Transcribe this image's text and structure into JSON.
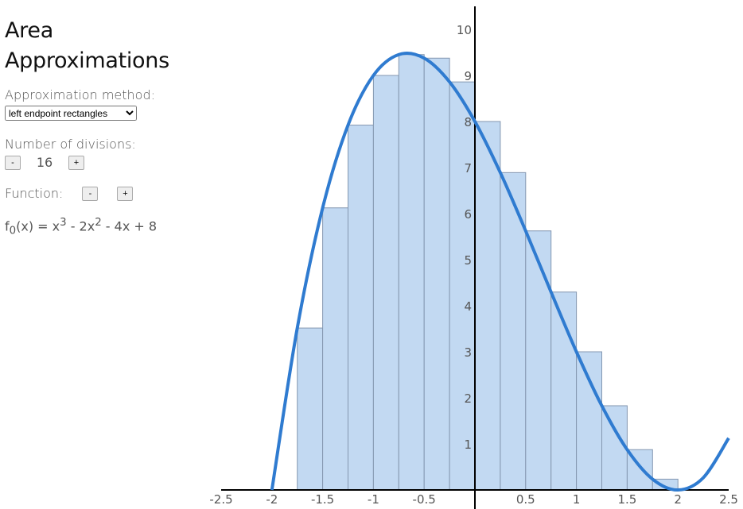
{
  "header": {
    "title": "Area Approximations"
  },
  "controls": {
    "method_label": "Approximation method:",
    "method_value": "left endpoint rectangles",
    "divisions_label": "Number of divisions:",
    "divisions_minus": "-",
    "divisions_value": 16,
    "divisions_plus": "+",
    "function_label": "Function:",
    "function_minus": "-",
    "function_plus": "+"
  },
  "formula": {
    "parts": [
      "f",
      "0",
      "(x) = x",
      "3",
      " - 2x",
      "2",
      " - 4x + 8"
    ]
  },
  "chart_data": {
    "type": "histogram",
    "bins": [
      -2,
      -1.75,
      -1.5,
      -1.25,
      -1,
      -0.75,
      -0.5,
      -0.25,
      0,
      0.25,
      0.5,
      0.75,
      1,
      1.25,
      1.5,
      1.75,
      2
    ],
    "values": [
      0,
      3.515625,
      6.125,
      7.921875,
      9,
      9.453125,
      9.375,
      8.859375,
      8,
      6.890625,
      5.625,
      4.296875,
      3,
      1.828125,
      0.875,
      0.234375
    ],
    "color": "#c2d9f2",
    "line": {
      "x": [
        -2,
        -1.75,
        -1.5,
        -1.25,
        -1,
        -0.75,
        -0.5,
        -0.25,
        0,
        0.25,
        0.5,
        0.75,
        1,
        1.25,
        1.5,
        1.75,
        2,
        2.25,
        2.5
      ],
      "values": [
        0,
        3.515625,
        6.125,
        7.921875,
        9,
        9.453125,
        9.375,
        8.859375,
        8,
        6.890625,
        5.625,
        4.296875,
        3,
        1.828125,
        0.875,
        0.234375,
        0,
        0.265625,
        1.125
      ],
      "color": "#2f7bd0"
    },
    "xlim": [
      -2.5,
      2.5
    ],
    "xticks": [
      -2.5,
      -2,
      -1.5,
      -1,
      -0.5,
      0.5,
      1,
      1.5,
      2,
      2.5
    ],
    "ylim": [
      0,
      10.5
    ],
    "yticks": [
      1,
      2,
      3,
      4,
      5,
      6,
      7,
      8,
      9,
      10
    ]
  }
}
